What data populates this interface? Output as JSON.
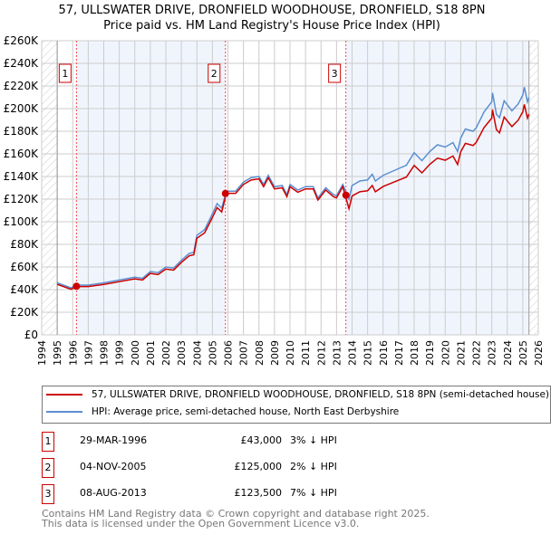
{
  "title": "57, ULLSWATER DRIVE, DRONFIELD WOODHOUSE, DRONFIELD, S18 8PN",
  "subtitle": "Price paid vs. HM Land Registry's House Price Index (HPI)",
  "chart_data": {
    "type": "line",
    "xlim": [
      1994,
      2026
    ],
    "ylim": [
      0,
      260000
    ],
    "x_ticks": [
      "1994",
      "1995",
      "1996",
      "1997",
      "1998",
      "1999",
      "2000",
      "2001",
      "2002",
      "2003",
      "2004",
      "2005",
      "2006",
      "2007",
      "2008",
      "2009",
      "2010",
      "2011",
      "2012",
      "2013",
      "2014",
      "2015",
      "2016",
      "2017",
      "2018",
      "2019",
      "2020",
      "2021",
      "2022",
      "2023",
      "2024",
      "2025",
      "2026"
    ],
    "y_ticks": [
      "£0",
      "£20K",
      "£40K",
      "£60K",
      "£80K",
      "£100K",
      "£120K",
      "£140K",
      "£160K",
      "£180K",
      "£200K",
      "£220K",
      "£240K",
      "£260K"
    ],
    "data_end": 2025.4,
    "series": [
      {
        "name": "57, ULLSWATER DRIVE, DRONFIELD WOODHOUSE, DRONFIELD, S18 8PN (semi-detached house)",
        "color": "#cc0000"
      },
      {
        "name": "HPI: Average price, semi-detached house, North East Derbyshire",
        "color": "#5b8fd0",
        "x": [
          1995,
          1995.9,
          1996.2,
          1997,
          1998,
          1999,
          2000,
          2000.5,
          2001,
          2001.5,
          2002,
          2002.5,
          2003,
          2003.5,
          2003.8,
          2004,
          2004.5,
          2005,
          2005.3,
          2005.6,
          2005.9,
          2006.5,
          2007,
          2007.5,
          2008,
          2008.3,
          2008.6,
          2009,
          2009.5,
          2009.8,
          2010,
          2010.5,
          2011,
          2011.5,
          2011.8,
          2012.3,
          2012.8,
          2013,
          2013.4,
          2013.8,
          2014,
          2014.5,
          2015,
          2015.3,
          2015.5,
          2016,
          2016.5,
          2017,
          2017.5,
          2018,
          2018.5,
          2019,
          2019.5,
          2020,
          2020.5,
          2020.8,
          2021,
          2021.3,
          2021.8,
          2022,
          2022.5,
          2023,
          2023.05,
          2023.3,
          2023.5,
          2023.8,
          2024.3,
          2024.7,
          2025,
          2025.1,
          2025.3,
          2025.4
        ],
        "y": [
          46000,
          41500,
          44000,
          44000,
          46000,
          48500,
          51000,
          50000,
          56000,
          55000,
          60000,
          59000,
          66000,
          72000,
          73000,
          88000,
          93000,
          107000,
          116000,
          112000,
          127000,
          127000,
          135000,
          139000,
          140000,
          133000,
          141000,
          131000,
          132000,
          124000,
          133000,
          128000,
          131000,
          131000,
          121000,
          130000,
          124000,
          123000,
          133000,
          120000,
          132000,
          136000,
          137000,
          142000,
          136000,
          141000,
          144000,
          147000,
          150000,
          161000,
          154000,
          162000,
          168000,
          166000,
          170000,
          162000,
          174000,
          182000,
          180000,
          183000,
          197000,
          206000,
          214000,
          195000,
          192000,
          207000,
          198000,
          204000,
          212000,
          219000,
          206000,
          210000
        ]
      }
    ],
    "sales": [
      {
        "label": "1",
        "x": 1996.24,
        "price": 43000,
        "date": "29-MAR-1996",
        "price_text": "£43,000",
        "hpi": "3% ↓ HPI"
      },
      {
        "label": "2",
        "x": 2005.84,
        "price": 125000,
        "date": "04-NOV-2005",
        "price_text": "£125,000",
        "hpi": "2% ↓ HPI"
      },
      {
        "label": "3",
        "x": 2013.6,
        "price": 123500,
        "date": "08-AUG-2013",
        "price_text": "£123,500",
        "hpi": "7% ↓ HPI"
      }
    ]
  },
  "footer": {
    "line1": "Contains HM Land Registry data © Crown copyright and database right 2025.",
    "line2": "This data is licensed under the Open Government Licence v3.0."
  }
}
